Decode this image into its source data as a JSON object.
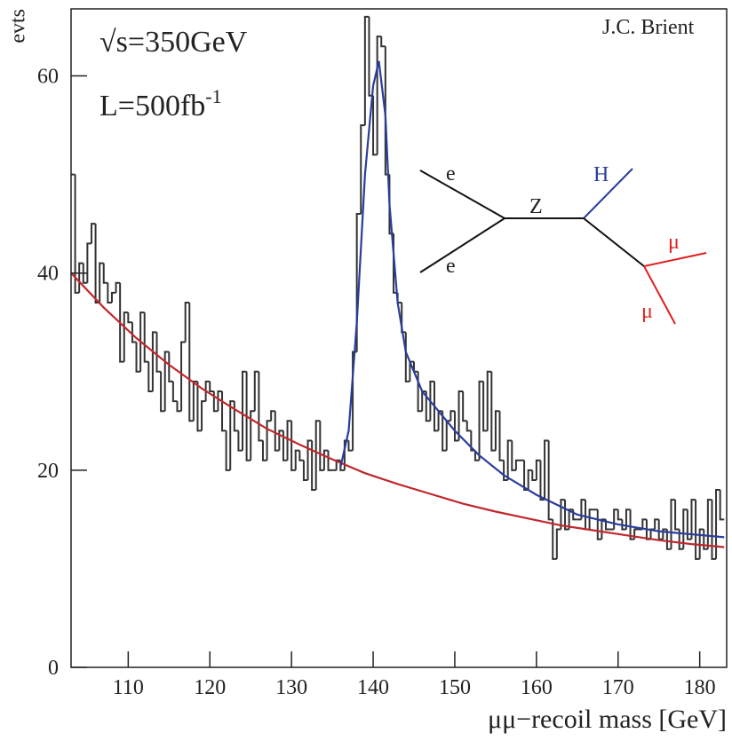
{
  "chart_data": {
    "type": "histogram",
    "credit": "J.C. Brient",
    "energy": "√s=350GeV",
    "lumi": {
      "text": "L=500fb",
      "sup": "-1"
    },
    "xlabel": "μμ−recoil mass [GeV]",
    "ylabel": "evts",
    "xlim": [
      103,
      183.3
    ],
    "ylim": [
      0,
      66.8
    ],
    "xticks": [
      110,
      120,
      130,
      140,
      150,
      160,
      170,
      180
    ],
    "yticks": [
      0,
      20,
      40,
      60
    ],
    "color": "#333333",
    "bins": [
      103,
      103.5,
      104,
      104.5,
      105,
      105.5,
      106,
      106.5,
      107,
      107.5,
      108,
      108.5,
      109,
      109.5,
      110,
      110.5,
      111,
      111.5,
      112,
      112.5,
      113,
      113.5,
      114,
      114.5,
      115,
      115.5,
      116,
      116.5,
      117,
      117.5,
      118,
      118.5,
      119,
      119.5,
      120,
      120.5,
      121,
      121.5,
      122,
      122.5,
      123,
      123.5,
      124,
      124.5,
      125,
      125.5,
      126,
      126.5,
      127,
      127.5,
      128,
      128.5,
      129,
      129.5,
      130,
      130.5,
      131,
      131.5,
      132,
      132.5,
      133,
      133.5,
      134,
      134.5,
      135,
      135.5,
      136,
      136.5,
      137,
      137.5,
      138,
      138.5,
      139,
      139.5,
      140,
      140.5,
      141,
      141.5,
      142,
      142.5,
      143,
      143.5,
      144,
      144.5,
      145,
      145.5,
      146,
      146.5,
      147,
      147.5,
      148,
      148.5,
      149,
      149.5,
      150,
      150.5,
      151,
      151.5,
      152,
      152.5,
      153,
      153.5,
      154,
      154.5,
      155,
      155.5,
      156,
      156.5,
      157,
      157.5,
      158,
      158.5,
      159,
      159.5,
      160,
      160.5,
      161,
      161.5,
      162,
      162.5,
      163,
      163.5,
      164,
      164.5,
      165,
      165.5,
      166,
      166.5,
      167,
      167.5,
      168,
      168.5,
      169,
      169.5,
      170,
      170.5,
      171,
      171.5,
      172,
      172.5,
      173,
      173.5,
      174,
      174.5,
      175,
      175.5,
      176,
      176.5,
      177,
      177.5,
      178,
      178.5,
      179,
      179.5,
      180,
      180.5,
      181,
      181.5,
      182,
      182.5,
      183
    ],
    "values": [
      50,
      38,
      41,
      39,
      43,
      45,
      37,
      41,
      39,
      37,
      38,
      39,
      31,
      36,
      35,
      33,
      30,
      36,
      31,
      28,
      34,
      30,
      26,
      32,
      29,
      27,
      26,
      33,
      37,
      25,
      29,
      24,
      27,
      29,
      28,
      26,
      28,
      24,
      20,
      27,
      24,
      22,
      30,
      21,
      26,
      30,
      23,
      21,
      25,
      26,
      22,
      24,
      21,
      25,
      20,
      22,
      21,
      19,
      23,
      18,
      25,
      20,
      22,
      20,
      20,
      21,
      20,
      23,
      22,
      32,
      46,
      55,
      66,
      58,
      52,
      64,
      63,
      50,
      44,
      38,
      37,
      34,
      29,
      31,
      30,
      26,
      28,
      25,
      29,
      24,
      26,
      22,
      25,
      26,
      23,
      28,
      25,
      24,
      22,
      21,
      29,
      24,
      30,
      22,
      26,
      21,
      19,
      23,
      20,
      21,
      21,
      18,
      20,
      19,
      21,
      17,
      23,
      15,
      11,
      14,
      17,
      14,
      16,
      15,
      15,
      17,
      14,
      16,
      16,
      13,
      15,
      14,
      14,
      16,
      15,
      14,
      16,
      13,
      14,
      14,
      15,
      13,
      14,
      15,
      13,
      14,
      12,
      17,
      14,
      12,
      16,
      13,
      17,
      11,
      14,
      12,
      17,
      11,
      18,
      15
    ],
    "fits": [
      {
        "color": "#c0282d",
        "x": [
          103,
          107,
          111,
          115,
          119,
          123,
          127,
          131,
          135,
          139,
          143,
          147,
          151,
          155,
          159,
          163,
          167,
          171,
          175,
          179,
          183
        ],
        "values": [
          40.0,
          36.5,
          33.4,
          30.7,
          28.3,
          26.2,
          24.2,
          22.6,
          21.1,
          19.7,
          18.6,
          17.6,
          16.6,
          15.8,
          15.1,
          14.4,
          13.9,
          13.4,
          12.9,
          12.5,
          12.2
        ]
      },
      {
        "color": "#2a3d9c",
        "x": [
          136,
          137,
          138,
          139,
          140,
          140.7,
          141.5,
          142,
          143,
          144,
          146,
          148,
          150,
          153,
          156,
          160,
          165,
          170,
          175,
          183
        ],
        "values": [
          20.3,
          24,
          35,
          50,
          59,
          61.5,
          56,
          47,
          37,
          32,
          28,
          26,
          24,
          21.5,
          19.5,
          17.5,
          15.5,
          14.5,
          13.8,
          13.2
        ]
      }
    ],
    "diagram": {
      "e1": "e",
      "e2": "e",
      "z": "Z",
      "h": "H",
      "mu1": "μ",
      "mu2": "μ"
    }
  }
}
